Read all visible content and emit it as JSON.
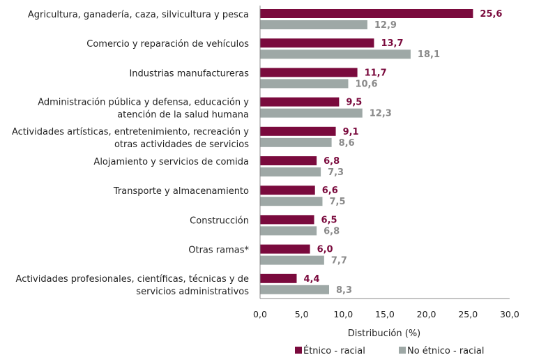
{
  "chart_data": {
    "type": "bar",
    "orientation": "horizontal",
    "categories": [
      [
        "Agricultura, ganadería, caza, silvicultura y pesca"
      ],
      [
        "Comercio y reparación de vehículos"
      ],
      [
        "Industrias manufactureras"
      ],
      [
        "Administración pública y defensa, educación y",
        "atención de la salud humana"
      ],
      [
        "Actividades artísticas, entretenimiento, recreación y",
        "otras actividades de servicios"
      ],
      [
        "Alojamiento y servicios de comida"
      ],
      [
        "Transporte y almacenamiento"
      ],
      [
        "Construcción"
      ],
      [
        "Otras ramas*"
      ],
      [
        "Actividades profesionales, científicas, técnicas y de",
        "servicios administrativos"
      ]
    ],
    "series": [
      {
        "name": "Étnico - racial",
        "color": "#7a0a3d",
        "label_color": "#7a0a3d",
        "values": [
          25.6,
          13.7,
          11.7,
          9.5,
          9.1,
          6.8,
          6.6,
          6.5,
          6.0,
          4.4
        ],
        "labels": [
          "25,6",
          "13,7",
          "11,7",
          "9,5",
          "9,1",
          "6,8",
          "6,6",
          "6,5",
          "6,0",
          "4,4"
        ]
      },
      {
        "name": "No étnico - racial",
        "color": "#9ea8a6",
        "label_color": "#8a8a8a",
        "values": [
          12.9,
          18.1,
          10.6,
          12.3,
          8.6,
          7.3,
          7.5,
          6.8,
          7.7,
          8.3
        ],
        "labels": [
          "12,9",
          "18,1",
          "10,6",
          "12,3",
          "8,6",
          "7,3",
          "7,5",
          "6,8",
          "7,7",
          "8,3"
        ]
      }
    ],
    "xlabel": "Distribución (%)",
    "xlim": [
      0,
      30
    ],
    "xticks": [
      0,
      5,
      10,
      15,
      20,
      25,
      30
    ],
    "xtick_labels": [
      "0,0",
      "5,0",
      "10,0",
      "15,0",
      "20,0",
      "25,0",
      "30,0"
    ],
    "grid": false,
    "legend_position": "bottom"
  }
}
